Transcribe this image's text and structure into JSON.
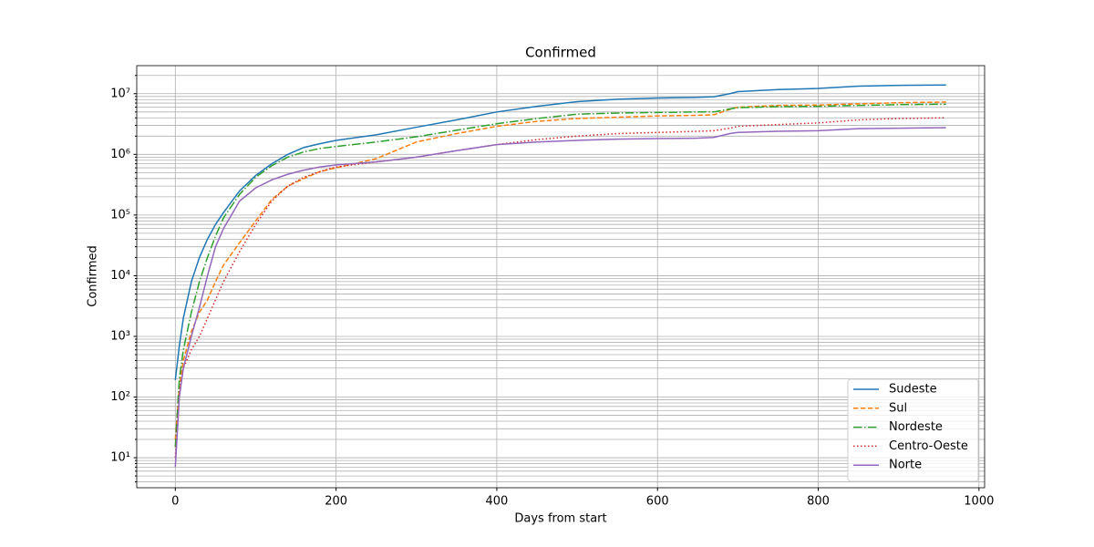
{
  "chart_data": {
    "type": "line",
    "title": "Confirmed",
    "xlabel": "Days from start",
    "ylabel": "Confirmed",
    "log_y": true,
    "grid": true,
    "legend": "lower right",
    "xlim": [
      -48,
      1007
    ],
    "ylim": [
      3.2,
      29000000
    ],
    "xticks": [
      0,
      200,
      400,
      600,
      800,
      1000
    ],
    "yticks": [
      {
        "value": 10,
        "label": "10¹"
      },
      {
        "value": 100,
        "label": "10²"
      },
      {
        "value": 1000,
        "label": "10³"
      },
      {
        "value": 10000,
        "label": "10⁴"
      },
      {
        "value": 100000,
        "label": "10⁵"
      },
      {
        "value": 1000000,
        "label": "10⁶"
      },
      {
        "value": 10000000,
        "label": "10⁷"
      }
    ],
    "x": [
      0,
      5,
      10,
      20,
      30,
      40,
      50,
      60,
      80,
      100,
      120,
      140,
      160,
      180,
      200,
      250,
      300,
      350,
      400,
      450,
      500,
      550,
      600,
      650,
      670,
      690,
      700,
      750,
      800,
      850,
      900,
      959
    ],
    "series": [
      {
        "name": "Sudeste",
        "color": "#1f77b4",
        "linestyle": "solid",
        "values": [
          190,
          700,
          2000,
          8000,
          20000,
          40000,
          70000,
          110000,
          250000,
          450000,
          700000,
          1000000,
          1300000,
          1500000,
          1700000,
          2100000,
          2800000,
          3700000,
          5000000,
          6200000,
          7400000,
          8100000,
          8500000,
          8700000,
          8900000,
          10000000,
          10800000,
          11700000,
          12200000,
          13300000,
          13700000,
          13900000
        ]
      },
      {
        "name": "Sul",
        "color": "#ff7f0e",
        "linestyle": "dashed",
        "values": [
          20,
          150,
          400,
          1200,
          2500,
          4000,
          8000,
          15000,
          35000,
          80000,
          180000,
          300000,
          400000,
          520000,
          600000,
          850000,
          1600000,
          2200000,
          2900000,
          3500000,
          3900000,
          4100000,
          4300000,
          4400000,
          4500000,
          5500000,
          6000000,
          6400000,
          6500000,
          6800000,
          7100000,
          7300000
        ]
      },
      {
        "name": "Nordeste",
        "color": "#2ca02c",
        "linestyle": "dashdot",
        "values": [
          15,
          200,
          600,
          2500,
          8000,
          20000,
          45000,
          90000,
          220000,
          420000,
          650000,
          900000,
          1100000,
          1250000,
          1350000,
          1600000,
          1950000,
          2500000,
          3200000,
          3900000,
          4600000,
          4800000,
          4900000,
          5000000,
          5000000,
          5600000,
          5900000,
          6100000,
          6200000,
          6400000,
          6600000,
          6700000
        ]
      },
      {
        "name": "Centro-Oeste",
        "color": "#d62728",
        "linestyle": "dotted",
        "values": [
          10,
          120,
          300,
          600,
          1000,
          2000,
          4000,
          8000,
          25000,
          70000,
          170000,
          300000,
          420000,
          520000,
          620000,
          750000,
          900000,
          1150000,
          1450000,
          1750000,
          2000000,
          2200000,
          2300000,
          2400000,
          2450000,
          2700000,
          2900000,
          3100000,
          3300000,
          3700000,
          3900000,
          4000000
        ]
      },
      {
        "name": "Norte",
        "color": "#9467bd",
        "linestyle": "solid",
        "values": [
          7,
          100,
          300,
          1000,
          3000,
          10000,
          30000,
          60000,
          170000,
          280000,
          380000,
          470000,
          550000,
          620000,
          670000,
          750000,
          900000,
          1150000,
          1450000,
          1600000,
          1700000,
          1780000,
          1820000,
          1850000,
          1900000,
          2200000,
          2300000,
          2400000,
          2450000,
          2650000,
          2700000,
          2750000
        ]
      }
    ]
  }
}
